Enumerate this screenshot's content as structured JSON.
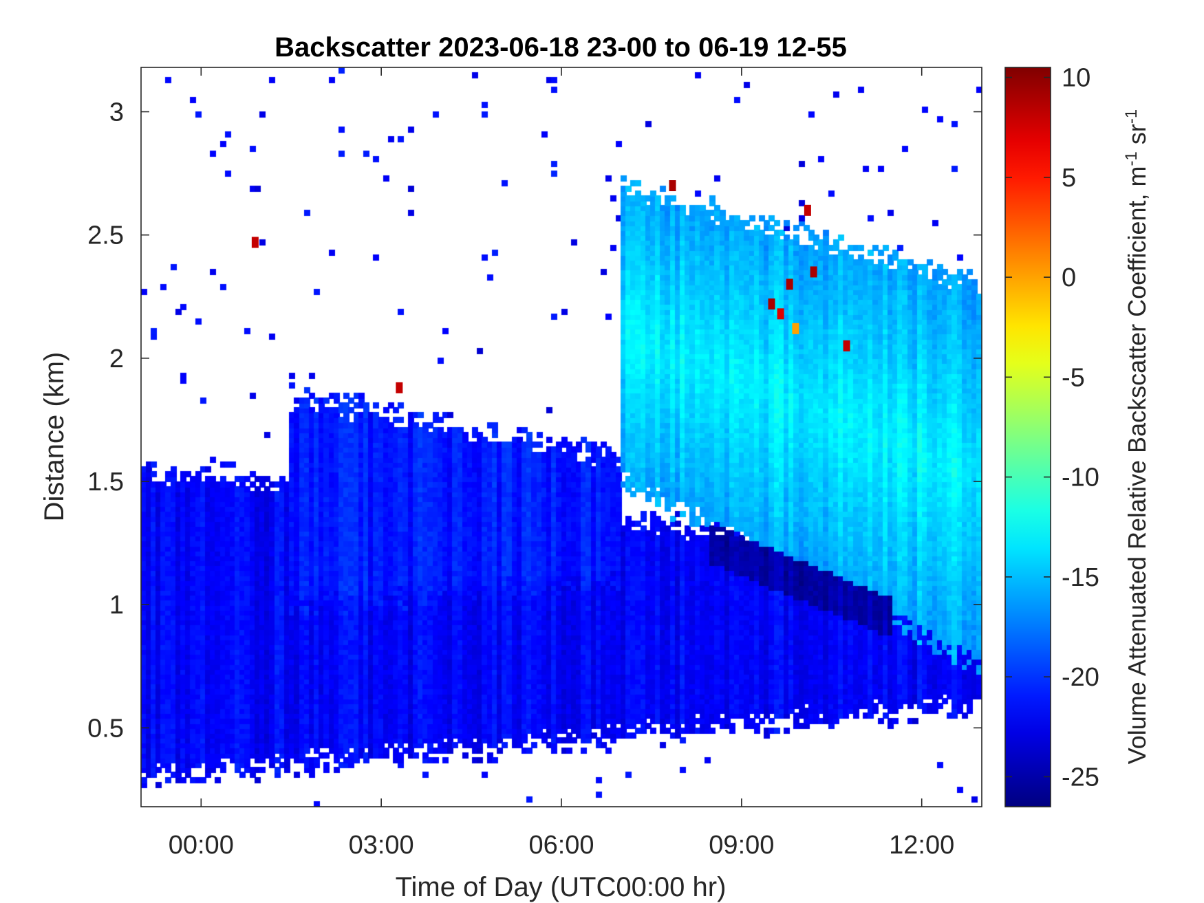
{
  "chart_data": {
    "type": "heatmap",
    "title": "Backscatter 2023-06-18 23-00 to 06-19 12-55",
    "xlabel": "Time of Day (UTC00:00 hr)",
    "ylabel": "Distance (km)",
    "x_ticks": [
      {
        "label": "00:00",
        "value": 0
      },
      {
        "label": "03:00",
        "value": 3
      },
      {
        "label": "06:00",
        "value": 6
      },
      {
        "label": "09:00",
        "value": 9
      },
      {
        "label": "12:00",
        "value": 12
      }
    ],
    "y_ticks": [
      {
        "label": "0.5",
        "value": 0.5
      },
      {
        "label": "1",
        "value": 1
      },
      {
        "label": "1.5",
        "value": 1.5
      },
      {
        "label": "2",
        "value": 2
      },
      {
        "label": "2.5",
        "value": 2.5
      },
      {
        "label": "3",
        "value": 3
      }
    ],
    "xlim": [
      -1.0,
      13.0
    ],
    "ylim": [
      0.18,
      3.18
    ],
    "colorbar": {
      "label_main": "Volume Attenuated Relative Backscatter Coefficient, m",
      "label_sup1": "-1",
      "label_mid": " sr",
      "label_sup2": "-1",
      "colormap": "jet",
      "clim": [
        -26.5,
        10.5
      ],
      "ticks": [
        {
          "label": "10",
          "value": 10
        },
        {
          "label": "5",
          "value": 5
        },
        {
          "label": "0",
          "value": 0
        },
        {
          "label": "-5",
          "value": -5
        },
        {
          "label": "-10",
          "value": -10
        },
        {
          "label": "-15",
          "value": -15
        },
        {
          "label": "-20",
          "value": -20
        },
        {
          "label": "-25",
          "value": -25
        }
      ]
    },
    "field_regions": [
      {
        "name": "boundary-layer",
        "time": [
          -1.0,
          13.0
        ],
        "bottom_km": [
          0.3,
          0.6
        ],
        "top_km": [
          1.55,
          1.2
        ],
        "value_dB": -22
      },
      {
        "name": "residual-layer",
        "time": [
          1.5,
          7.0
        ],
        "bottom_km": [
          1.0,
          1.1
        ],
        "top_km": [
          1.85,
          1.6
        ],
        "value_dB": -21
      },
      {
        "name": "upper-layer",
        "time": [
          7.0,
          13.0
        ],
        "bottom_km": [
          1.5,
          0.75
        ],
        "top_km": [
          2.7,
          2.3
        ],
        "value_dB": -16
      },
      {
        "name": "dark-band",
        "time": [
          8.5,
          11.5
        ],
        "center_km": [
          1.25,
          0.95
        ],
        "value_dB": -25
      }
    ],
    "hotspots": [
      {
        "time": 0.9,
        "distance_km": 2.47,
        "value_dB": 8
      },
      {
        "time": 3.3,
        "distance_km": 1.88,
        "value_dB": 8
      },
      {
        "time": 7.85,
        "distance_km": 2.7,
        "value_dB": 9
      },
      {
        "time": 9.5,
        "distance_km": 2.22,
        "value_dB": 9
      },
      {
        "time": 9.65,
        "distance_km": 2.18,
        "value_dB": 7
      },
      {
        "time": 9.8,
        "distance_km": 2.3,
        "value_dB": 9
      },
      {
        "time": 9.9,
        "distance_km": 2.12,
        "value_dB": 0
      },
      {
        "time": 10.1,
        "distance_km": 2.6,
        "value_dB": 8
      },
      {
        "time": 10.2,
        "distance_km": 2.35,
        "value_dB": 9
      },
      {
        "time": 10.75,
        "distance_km": 2.05,
        "value_dB": 8
      }
    ]
  }
}
